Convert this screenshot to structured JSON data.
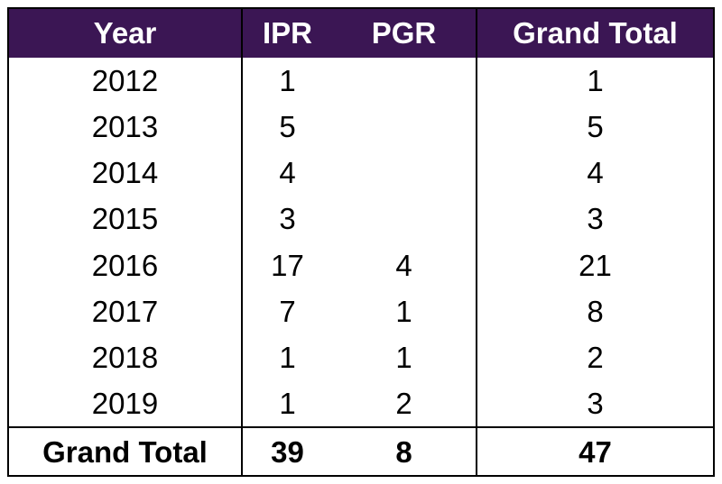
{
  "chart_data": {
    "type": "table",
    "columns": [
      "Year",
      "IPR",
      "PGR",
      "Grand Total"
    ],
    "rows": [
      {
        "year": "2012",
        "ipr": "1",
        "pgr": "",
        "total": "1"
      },
      {
        "year": "2013",
        "ipr": "5",
        "pgr": "",
        "total": "5"
      },
      {
        "year": "2014",
        "ipr": "4",
        "pgr": "",
        "total": "4"
      },
      {
        "year": "2015",
        "ipr": "3",
        "pgr": "",
        "total": "3"
      },
      {
        "year": "2016",
        "ipr": "17",
        "pgr": "4",
        "total": "21"
      },
      {
        "year": "2017",
        "ipr": "7",
        "pgr": "1",
        "total": "8"
      },
      {
        "year": "2018",
        "ipr": "1",
        "pgr": "1",
        "total": "2"
      },
      {
        "year": "2019",
        "ipr": "1",
        "pgr": "2",
        "total": "3"
      }
    ],
    "totals": {
      "label": "Grand Total",
      "ipr": "39",
      "pgr": "8",
      "total": "47"
    },
    "header_color": "#3b1654"
  }
}
